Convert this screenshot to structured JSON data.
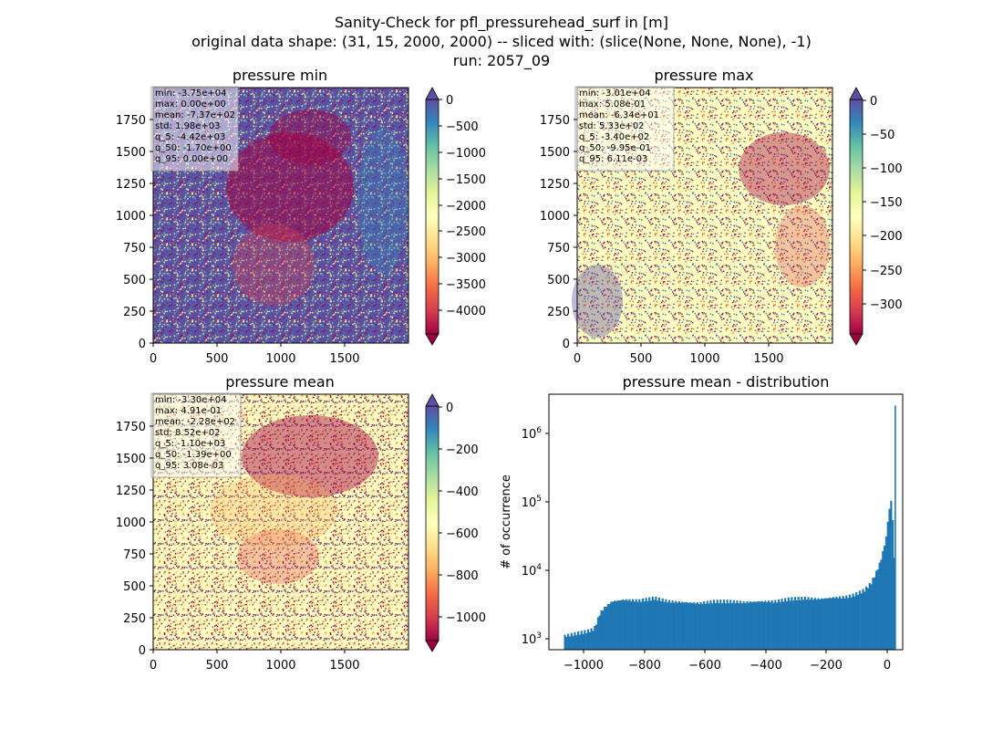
{
  "figure": {
    "title_lines": [
      "Sanity-Check for pfl_pressurehead_surf in [m]",
      "original data shape: (31, 15, 2000, 2000) -- sliced with: (slice(None, None, None), -1)",
      "run: 2057_09"
    ]
  },
  "colors": {
    "hist_bar": "#1f77b4",
    "spectral": [
      "#9e0142",
      "#d53e4f",
      "#f46d43",
      "#fdae61",
      "#fee08b",
      "#ffffbf",
      "#e6f598",
      "#abdda4",
      "#66c2a5",
      "#3288bd",
      "#5e4fa2"
    ]
  },
  "chart_data": [
    {
      "type": "heatmap",
      "title": "pressure min",
      "colormap": "Spectral",
      "xlim": [
        0,
        2000
      ],
      "ylim": [
        0,
        2000
      ],
      "xticks": [
        "0",
        "500",
        "1000",
        "1500"
      ],
      "yticks": [
        "0",
        "250",
        "500",
        "750",
        "1000",
        "1250",
        "1500",
        "1750"
      ],
      "colorbar": {
        "range": [
          -4300,
          0
        ],
        "extend": "both",
        "ticks": [
          "0",
          "−500",
          "−1000",
          "−1500",
          "−2000",
          "−2500",
          "−3000",
          "−3500",
          "−4000"
        ]
      },
      "stats": [
        "min: -3.75e+04",
        "max: 0.00e+00",
        "mean: -7.37e+02",
        "std: 1.98e+03",
        "q_5: -4.42e+03",
        "q_50: -1.70e+00",
        "q_95: 0.00e+00"
      ]
    },
    {
      "type": "heatmap",
      "title": "pressure max",
      "colormap": "Spectral",
      "xlim": [
        0,
        2000
      ],
      "ylim": [
        0,
        2000
      ],
      "xticks": [
        "0",
        "500",
        "1000",
        "1500"
      ],
      "yticks": [
        "0",
        "250",
        "500",
        "750",
        "1000",
        "1250",
        "1500",
        "1750"
      ],
      "colorbar": {
        "range": [
          -345,
          0
        ],
        "extend": "both",
        "ticks": [
          "0",
          "−50",
          "−100",
          "−150",
          "−200",
          "−250",
          "−300"
        ]
      },
      "stats": [
        "min: -3.01e+04",
        "max: 5.08e-01",
        "mean: -6.34e+01",
        "std: 5.33e+02",
        "q_5: -3.40e+02",
        "q_50: -9.95e-01",
        "q_95: 6.11e-03"
      ]
    },
    {
      "type": "heatmap",
      "title": "pressure mean",
      "colormap": "Spectral",
      "xlim": [
        0,
        2000
      ],
      "ylim": [
        0,
        2000
      ],
      "xticks": [
        "0",
        "500",
        "1000",
        "1500"
      ],
      "yticks": [
        "0",
        "250",
        "500",
        "750",
        "1000",
        "1250",
        "1500",
        "1750"
      ],
      "colorbar": {
        "range": [
          -1100,
          0
        ],
        "extend": "both",
        "ticks": [
          "0",
          "−200",
          "−400",
          "−600",
          "−800",
          "−1000"
        ]
      },
      "stats": [
        "min: -3.30e+04",
        "max: 4.91e-01",
        "mean: -2.28e+02",
        "std: 8.52e+02",
        "q_5: -1.10e+03",
        "q_50: -1.39e+00",
        "q_95: 3.08e-03"
      ]
    },
    {
      "type": "bar",
      "title": "pressure mean - distribution",
      "ylabel": "# of occurrence",
      "xlabel": "",
      "yscale": "log",
      "xlim": [
        -1150,
        25
      ],
      "ylim": [
        700,
        3500000
      ],
      "xticks": [
        "−1000",
        "−800",
        "−600",
        "−400",
        "−200",
        "0"
      ],
      "yticks": [
        "10^3",
        "10^4",
        "10^5",
        "10^6"
      ],
      "bin_profile": {
        "x": [
          -1100,
          -1080,
          -1060,
          -1040,
          -1020,
          -1000,
          -980,
          -960,
          -940,
          -900,
          -850,
          -800,
          -750,
          -700,
          -650,
          -600,
          -550,
          -500,
          -450,
          -400,
          -350,
          -300,
          -250,
          -200,
          -180,
          -160,
          -140,
          -120,
          -100,
          -90,
          -80,
          -70,
          -60,
          -50,
          -40,
          -30,
          -25,
          -20,
          -15,
          -10,
          -5,
          -2,
          0
        ],
        "y": [
          1100,
          1150,
          1200,
          1250,
          1300,
          1400,
          2400,
          3000,
          3500,
          3700,
          3600,
          3900,
          3500,
          3400,
          3300,
          3500,
          3500,
          3400,
          3500,
          3500,
          3800,
          3900,
          3800,
          4000,
          4000,
          4100,
          4300,
          4700,
          5200,
          5800,
          6500,
          8000,
          10000,
          13000,
          19000,
          30000,
          50000,
          70000,
          115000,
          70000,
          30000,
          12000,
          2400000
        ]
      }
    }
  ]
}
